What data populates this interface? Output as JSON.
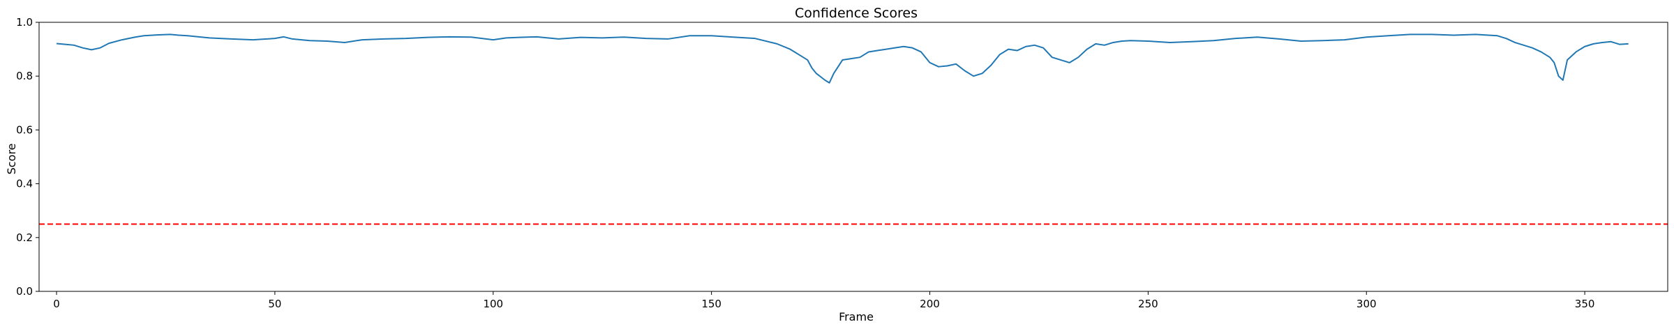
{
  "chart_data": {
    "type": "line",
    "title": "Confidence Scores",
    "xlabel": "Frame",
    "ylabel": "Score",
    "xlim": [
      -4,
      369
    ],
    "ylim": [
      0.0,
      1.0
    ],
    "xticks": [
      0,
      50,
      100,
      150,
      200,
      250,
      300,
      350
    ],
    "yticks": [
      "0.0",
      "0.2",
      "0.4",
      "0.6",
      "0.8",
      "1.0"
    ],
    "grid": false,
    "line_color": "#1f77b4",
    "threshold": {
      "value": 0.25,
      "color": "#ff0000",
      "style": "dashed"
    },
    "series": [
      {
        "x": [
          0,
          2,
          4,
          6,
          8,
          10,
          12,
          15,
          18,
          20,
          23,
          26,
          28,
          30,
          35,
          40,
          45,
          50,
          52,
          54,
          58,
          62,
          66,
          70,
          75,
          80,
          85,
          90,
          95,
          100,
          103,
          106,
          110,
          115,
          120,
          125,
          130,
          135,
          140,
          145,
          150,
          155,
          160,
          165,
          168,
          170,
          172,
          173,
          174,
          176,
          177,
          178,
          180,
          182,
          184,
          186,
          188,
          190,
          192,
          194,
          196,
          198,
          200,
          202,
          204,
          206,
          208,
          210,
          212,
          214,
          216,
          218,
          220,
          222,
          224,
          226,
          228,
          230,
          232,
          234,
          236,
          238,
          240,
          242,
          244,
          246,
          250,
          255,
          260,
          265,
          270,
          275,
          280,
          285,
          290,
          295,
          300,
          305,
          310,
          315,
          320,
          325,
          330,
          332,
          334,
          336,
          338,
          340,
          342,
          343,
          344,
          345,
          346,
          348,
          350,
          352,
          354,
          356,
          358,
          360
        ],
        "y": [
          0.921,
          0.918,
          0.915,
          0.905,
          0.898,
          0.905,
          0.922,
          0.935,
          0.945,
          0.95,
          0.953,
          0.955,
          0.952,
          0.95,
          0.942,
          0.938,
          0.935,
          0.94,
          0.946,
          0.938,
          0.932,
          0.93,
          0.925,
          0.935,
          0.938,
          0.94,
          0.944,
          0.946,
          0.945,
          0.935,
          0.942,
          0.944,
          0.946,
          0.938,
          0.944,
          0.942,
          0.945,
          0.94,
          0.938,
          0.95,
          0.95,
          0.945,
          0.94,
          0.92,
          0.9,
          0.88,
          0.86,
          0.83,
          0.81,
          0.785,
          0.775,
          0.81,
          0.86,
          0.865,
          0.87,
          0.89,
          0.895,
          0.9,
          0.905,
          0.91,
          0.905,
          0.89,
          0.85,
          0.835,
          0.838,
          0.845,
          0.82,
          0.8,
          0.81,
          0.84,
          0.88,
          0.9,
          0.895,
          0.91,
          0.915,
          0.905,
          0.87,
          0.86,
          0.85,
          0.87,
          0.9,
          0.92,
          0.915,
          0.925,
          0.93,
          0.932,
          0.93,
          0.925,
          0.928,
          0.932,
          0.94,
          0.945,
          0.938,
          0.93,
          0.932,
          0.935,
          0.945,
          0.95,
          0.955,
          0.955,
          0.952,
          0.955,
          0.95,
          0.94,
          0.925,
          0.915,
          0.905,
          0.89,
          0.87,
          0.85,
          0.8,
          0.785,
          0.86,
          0.89,
          0.91,
          0.92,
          0.925,
          0.928,
          0.918,
          0.92
        ]
      }
    ]
  }
}
